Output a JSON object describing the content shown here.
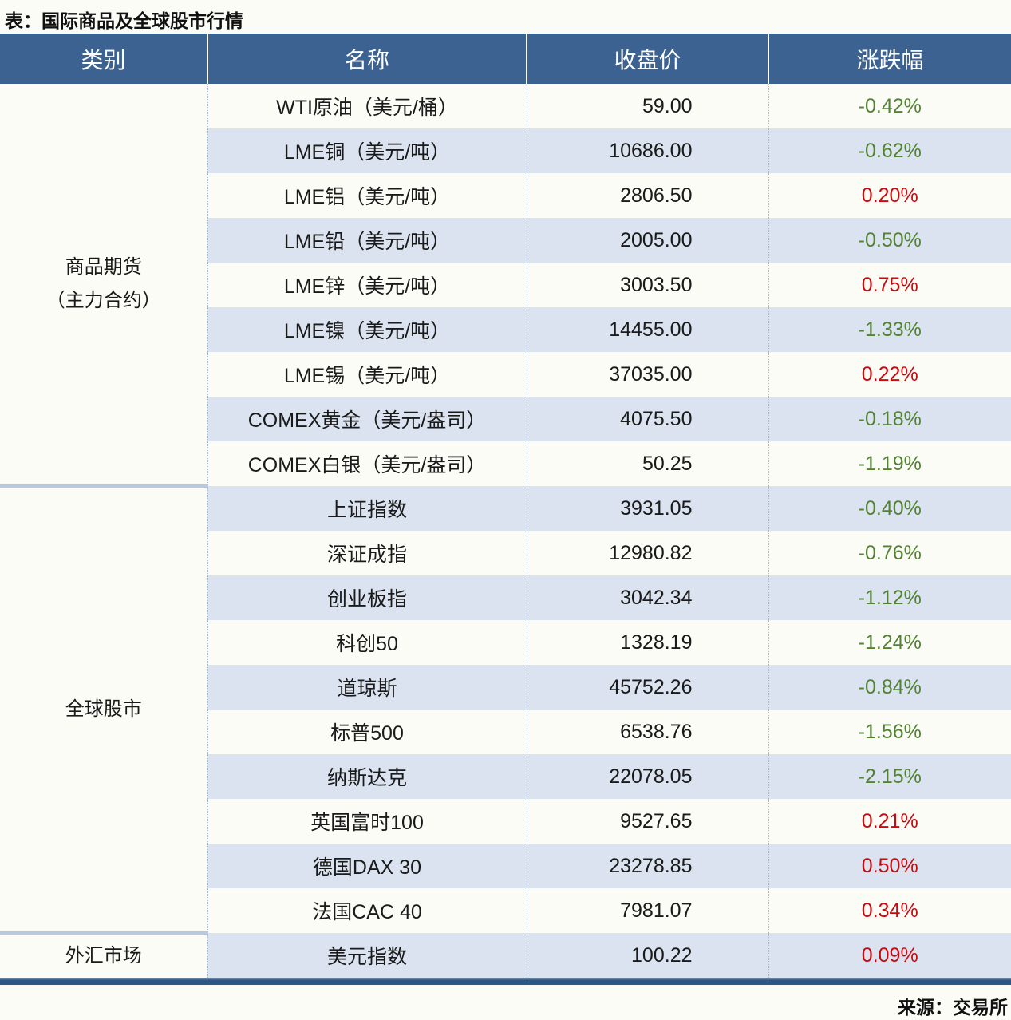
{
  "page": {
    "title": "表：国际商品及全球股市行情",
    "source": "来源：交易所"
  },
  "colors": {
    "header_bg": "#3B6291",
    "stripe_blue": "#DAE3EF",
    "row_white": "#FCFCF6",
    "rise_red": "#C80A0F",
    "fall_green": "#548235",
    "group_separator": "#B9CADF",
    "bottom_line": "#2E5685"
  },
  "table": {
    "headers": [
      "类别",
      "名称",
      "收盘价",
      "涨跌幅"
    ],
    "groups": [
      {
        "category_lines": [
          "商品期货",
          "（主力合约）"
        ],
        "rows": [
          {
            "name": "WTI原油（美元/桶）",
            "close": "59.00",
            "change": "-0.42%",
            "direction": "down"
          },
          {
            "name": "LME铜（美元/吨）",
            "close": "10686.00",
            "change": "-0.62%",
            "direction": "down"
          },
          {
            "name": "LME铝（美元/吨）",
            "close": "2806.50",
            "change": "0.20%",
            "direction": "up"
          },
          {
            "name": "LME铅（美元/吨）",
            "close": "2005.00",
            "change": "-0.50%",
            "direction": "down"
          },
          {
            "name": "LME锌（美元/吨）",
            "close": "3003.50",
            "change": "0.75%",
            "direction": "up"
          },
          {
            "name": "LME镍（美元/吨）",
            "close": "14455.00",
            "change": "-1.33%",
            "direction": "down"
          },
          {
            "name": "LME锡（美元/吨）",
            "close": "37035.00",
            "change": "0.22%",
            "direction": "up"
          },
          {
            "name": "COMEX黄金（美元/盎司）",
            "close": "4075.50",
            "change": "-0.18%",
            "direction": "down"
          },
          {
            "name": "COMEX白银（美元/盎司）",
            "close": "50.25",
            "change": "-1.19%",
            "direction": "down"
          }
        ]
      },
      {
        "category_lines": [
          "全球股市"
        ],
        "rows": [
          {
            "name": "上证指数",
            "close": "3931.05",
            "change": "-0.40%",
            "direction": "down"
          },
          {
            "name": "深证成指",
            "close": "12980.82",
            "change": "-0.76%",
            "direction": "down"
          },
          {
            "name": "创业板指",
            "close": "3042.34",
            "change": "-1.12%",
            "direction": "down"
          },
          {
            "name": "科创50",
            "close": "1328.19",
            "change": "-1.24%",
            "direction": "down"
          },
          {
            "name": "道琼斯",
            "close": "45752.26",
            "change": "-0.84%",
            "direction": "down"
          },
          {
            "name": "标普500",
            "close": "6538.76",
            "change": "-1.56%",
            "direction": "down"
          },
          {
            "name": "纳斯达克",
            "close": "22078.05",
            "change": "-2.15%",
            "direction": "down"
          },
          {
            "name": "英国富时100",
            "close": "9527.65",
            "change": "0.21%",
            "direction": "up"
          },
          {
            "name": "德国DAX 30",
            "close": "23278.85",
            "change": "0.50%",
            "direction": "up"
          },
          {
            "name": "法国CAC 40",
            "close": "7981.07",
            "change": "0.34%",
            "direction": "up"
          }
        ]
      },
      {
        "category_lines": [
          "外汇市场"
        ],
        "rows": [
          {
            "name": "美元指数",
            "close": "100.22",
            "change": "0.09%",
            "direction": "up"
          }
        ]
      }
    ]
  }
}
